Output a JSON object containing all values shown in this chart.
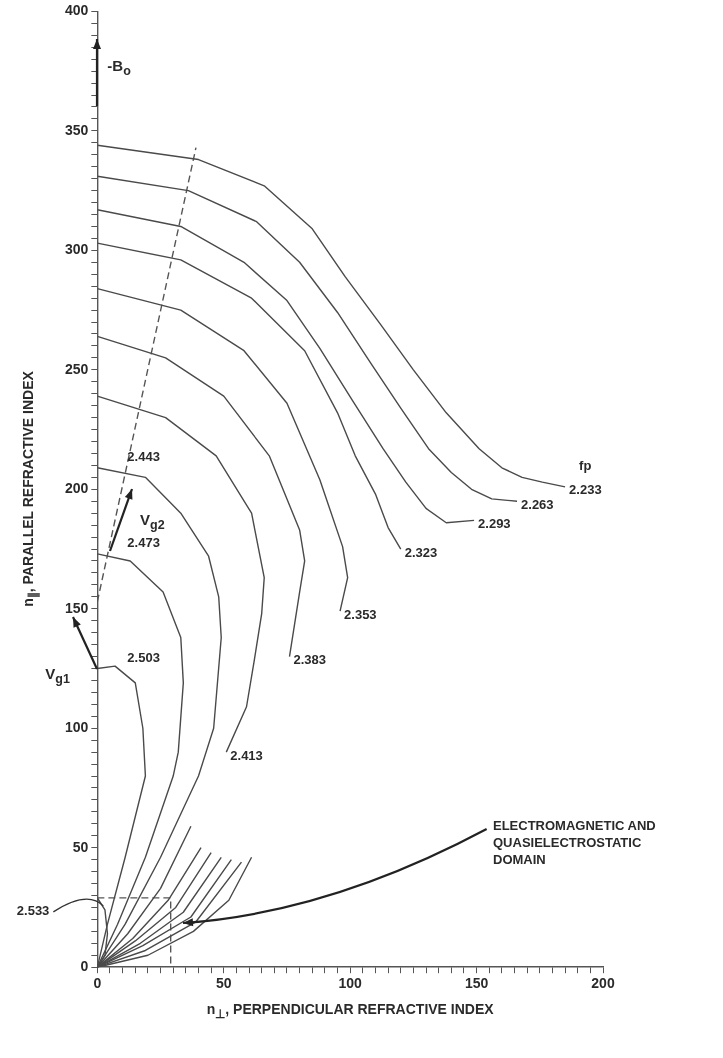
{
  "chart_data": {
    "type": "line",
    "xlabel": "n$_{⊥}$, PERPENDICULAR REFRACTIVE INDEX",
    "ylabel": "n$_{∥}$, PARALLEL REFRACTIVE INDEX",
    "legend_title": "fp",
    "annotations": [
      "-B$_{o}$",
      {
        "text": "V$_{g2}$",
        "x": 5,
        "y": 174
      },
      {
        "text": "V$_{g1}$",
        "x": 0,
        "y": 125
      },
      "ELECTROMAGNETIC AND QUASIELECTROSTATIC DOMAIN"
    ],
    "xlim": [
      0,
      200
    ],
    "ylim": [
      0,
      400
    ],
    "xticks": [
      0,
      {
        "value": 5,
        "label": null
      },
      {
        "value": 10,
        "label": null
      },
      {
        "value": 15,
        "label": null
      },
      {
        "value": 20,
        "label": null
      },
      {
        "value": 25,
        "label": null
      },
      {
        "value": 30,
        "label": null
      },
      {
        "value": 35,
        "label": null
      },
      {
        "value": 40,
        "label": null
      },
      {
        "value": 45,
        "label": null
      },
      50,
      {
        "value": 55,
        "label": null
      },
      {
        "value": 60,
        "label": null
      },
      {
        "value": 65,
        "label": null
      },
      {
        "value": 70,
        "label": null
      },
      {
        "value": 75,
        "label": null
      },
      {
        "value": 80,
        "label": null
      },
      {
        "value": 85,
        "label": null
      },
      {
        "value": 90,
        "label": null
      },
      {
        "value": 95,
        "label": null
      },
      100,
      {
        "value": 105,
        "label": null
      },
      {
        "value": 110,
        "label": null
      },
      {
        "value": 115,
        "label": null
      },
      {
        "value": 120,
        "label": null
      },
      {
        "value": 125,
        "label": null
      },
      {
        "value": 130,
        "label": null
      },
      {
        "value": 135,
        "label": null
      },
      {
        "value": 140,
        "label": null
      },
      {
        "value": 145,
        "label": null
      },
      150,
      {
        "value": 155,
        "label": null
      },
      {
        "value": 160,
        "label": null
      },
      {
        "value": 165,
        "label": null
      },
      {
        "value": 170,
        "label": null
      },
      {
        "value": 175,
        "label": null
      },
      {
        "value": 180,
        "label": null
      },
      {
        "value": 185,
        "label": null
      },
      {
        "value": 190,
        "label": null
      },
      {
        "value": 195,
        "label": null
      },
      200
    ],
    "yticks": [
      0,
      {
        "value": 5,
        "label": null
      },
      {
        "value": 10,
        "label": null
      },
      {
        "value": 15,
        "label": null
      },
      {
        "value": 20,
        "label": null
      },
      {
        "value": 25,
        "label": null
      },
      {
        "value": 30,
        "label": null
      },
      {
        "value": 35,
        "label": null
      },
      {
        "value": 40,
        "label": null
      },
      {
        "value": 45,
        "label": null
      },
      50,
      {
        "value": 55,
        "label": null
      },
      {
        "value": 60,
        "label": null
      },
      {
        "value": 65,
        "label": null
      },
      {
        "value": 70,
        "label": null
      },
      {
        "value": 75,
        "label": null
      },
      {
        "value": 80,
        "label": null
      },
      {
        "value": 85,
        "label": null
      },
      {
        "value": 90,
        "label": null
      },
      {
        "value": 95,
        "label": null
      },
      100,
      {
        "value": 105,
        "label": null
      },
      {
        "value": 110,
        "label": null
      },
      {
        "value": 115,
        "label": null
      },
      {
        "value": 120,
        "label": null
      },
      {
        "value": 125,
        "label": null
      },
      {
        "value": 130,
        "label": null
      },
      {
        "value": 135,
        "label": null
      },
      {
        "value": 140,
        "label": null
      },
      {
        "value": 145,
        "label": null
      },
      150,
      {
        "value": 155,
        "label": null
      },
      {
        "value": 160,
        "label": null
      },
      {
        "value": 165,
        "label": null
      },
      {
        "value": 170,
        "label": null
      },
      {
        "value": 175,
        "label": null
      },
      {
        "value": 180,
        "label": null
      },
      {
        "value": 185,
        "label": null
      },
      {
        "value": 190,
        "label": null
      },
      {
        "value": 195,
        "label": null
      },
      200,
      {
        "value": 205,
        "label": null
      },
      {
        "value": 210,
        "label": null
      },
      {
        "value": 215,
        "label": null
      },
      {
        "value": 220,
        "label": null
      },
      {
        "value": 225,
        "label": null
      },
      {
        "value": 230,
        "label": null
      },
      {
        "value": 235,
        "label": null
      },
      {
        "value": 240,
        "label": null
      },
      {
        "value": 245,
        "label": null
      },
      250,
      {
        "value": 255,
        "label": null
      },
      {
        "value": 260,
        "label": null
      },
      {
        "value": 265,
        "label": null
      },
      {
        "value": 270,
        "label": null
      },
      {
        "value": 275,
        "label": null
      },
      {
        "value": 280,
        "label": null
      },
      {
        "value": 285,
        "label": null
      },
      {
        "value": 290,
        "label": null
      },
      {
        "value": 295,
        "label": null
      },
      300,
      {
        "value": 305,
        "label": null
      },
      {
        "value": 310,
        "label": null
      },
      {
        "value": 315,
        "label": null
      },
      {
        "value": 320,
        "label": null
      },
      {
        "value": 325,
        "label": null
      },
      {
        "value": 330,
        "label": null
      },
      {
        "value": 335,
        "label": null
      },
      {
        "value": 340,
        "label": null
      },
      {
        "value": 345,
        "label": null
      },
      350,
      {
        "value": 355,
        "label": null
      },
      {
        "value": 360,
        "label": null
      },
      {
        "value": 365,
        "label": null
      },
      {
        "value": 370,
        "label": null
      },
      {
        "value": 375,
        "label": null
      },
      {
        "value": 380,
        "label": null
      },
      {
        "value": 385,
        "label": null
      },
      {
        "value": 390,
        "label": null
      },
      {
        "value": 395,
        "label": null
      },
      400
    ],
    "grid": false,
    "legend": false,
    "marker": "none",
    "line_style": "solid",
    "series": [
      {
        "name": "2.233",
        "color": "#4a4a4a",
        "x": [
          0,
          40,
          66,
          85,
          98,
          112,
          125,
          138,
          151,
          160,
          168,
          176,
          185
        ],
        "values": [
          344,
          338,
          327,
          309,
          289,
          269,
          250,
          232,
          217,
          209,
          205,
          203,
          201
        ]
      },
      {
        "name": "2.263",
        "color": "#4a4a4a",
        "x": [
          0,
          36,
          63,
          80,
          95,
          108,
          120,
          131,
          140,
          148,
          156,
          166
        ],
        "values": [
          331,
          325,
          312,
          295,
          274,
          253,
          234,
          217,
          207,
          200,
          196,
          195
        ]
      },
      {
        "name": "2.293",
        "color": "#4a4a4a",
        "x": [
          0,
          33,
          58,
          75,
          88,
          101,
          113,
          122,
          130,
          138,
          149
        ],
        "values": [
          317,
          310,
          295,
          279,
          259,
          237,
          217,
          203,
          192,
          186,
          187
        ]
      },
      {
        "name": "2.323",
        "color": "#4a4a4a",
        "x": [
          0,
          33,
          61,
          82,
          95,
          102,
          110,
          115,
          120
        ],
        "values": [
          303,
          296,
          280,
          258,
          232,
          214,
          198,
          184,
          175
        ]
      },
      {
        "name": "2.353",
        "color": "#4a4a4a",
        "x": [
          0,
          33,
          58,
          75,
          88,
          97,
          99,
          96
        ],
        "values": [
          284,
          275,
          258,
          236,
          204,
          176,
          163,
          149
        ]
      },
      {
        "name": "2.383",
        "color": "#4a4a4a",
        "x": [
          0,
          27,
          50,
          68,
          80,
          82,
          80,
          76
        ],
        "values": [
          264,
          255,
          239,
          214,
          183,
          170,
          157,
          130
        ]
      },
      {
        "name": "2.413",
        "color": "#4a4a4a",
        "x": [
          0,
          27,
          47,
          61,
          66,
          65,
          62,
          59,
          51
        ],
        "values": [
          239,
          230,
          214,
          190,
          163,
          148,
          128,
          109,
          90
        ]
      },
      {
        "name": "2.443",
        "color": "#4a4a4a",
        "x": [
          0,
          19,
          33,
          44,
          48,
          49,
          46,
          40,
          25,
          11,
          0
        ],
        "values": [
          209,
          205,
          190,
          172,
          155,
          138,
          100,
          80,
          46,
          18,
          0
        ]
      },
      {
        "name": "2.473",
        "color": "#4a4a4a",
        "x": [
          0,
          13,
          26,
          33,
          34,
          32,
          30,
          19,
          8,
          0
        ],
        "values": [
          173,
          170,
          157,
          138,
          119,
          90,
          80,
          46,
          18,
          0
        ]
      },
      {
        "name": "2.503",
        "color": "#4a4a4a",
        "x": [
          0,
          7,
          15,
          18,
          19,
          11,
          4,
          0
        ],
        "values": [
          125,
          126,
          119,
          100,
          80,
          46,
          18,
          0
        ]
      },
      {
        "name": "2.533",
        "color": "#4a4a4a",
        "x": [
          0,
          3,
          4,
          3,
          0
        ],
        "values": [
          29,
          24,
          14,
          5,
          0
        ]
      },
      {
        "color": "#4a4a4a",
        "x": [
          0,
          12,
          25,
          37
        ],
        "values": [
          0,
          14,
          33,
          59
        ]
      },
      {
        "color": "#4a4a4a",
        "x": [
          0,
          14,
          28,
          41
        ],
        "values": [
          0,
          12,
          28,
          50
        ]
      },
      {
        "color": "#4a4a4a",
        "x": [
          0,
          15,
          31,
          45
        ],
        "values": [
          0,
          11,
          25,
          48
        ]
      },
      {
        "color": "#4a4a4a",
        "x": [
          0,
          17,
          34,
          49
        ],
        "values": [
          0,
          10,
          23,
          46
        ]
      },
      {
        "color": "#4a4a4a",
        "x": [
          0,
          18,
          37,
          53
        ],
        "values": [
          0,
          9,
          21,
          45
        ]
      },
      {
        "color": "#4a4a4a",
        "x": [
          0,
          19,
          39,
          57
        ],
        "values": [
          0,
          7,
          19,
          44
        ]
      },
      {
        "color": "#4a4a4a",
        "x": [
          0,
          20,
          38,
          52,
          61
        ],
        "values": [
          0,
          5,
          15,
          28,
          46
        ]
      },
      {
        "color": "#555555",
        "line_style": "dashed",
        "x": [
          0,
          39
        ],
        "values": [
          153,
          343
        ]
      },
      {
        "color": "#555555",
        "line_style": "dashed",
        "x": [
          0,
          29,
          29
        ],
        "values": [
          29,
          29,
          0
        ]
      }
    ]
  }
}
